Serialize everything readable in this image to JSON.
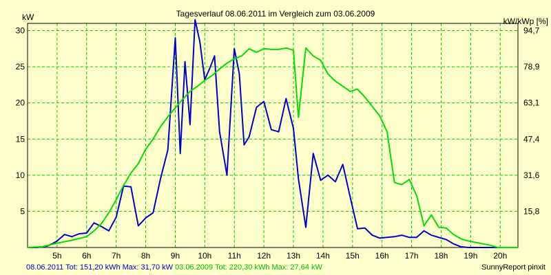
{
  "chart_data": {
    "type": "line",
    "title": "Tagesverlauf 08.06.2011 im Vergleich zum 03.06.2009",
    "ylabel_left": "kW",
    "ylabel_right": "kW/kWp [%]",
    "xlim": [
      4.0,
      20.6
    ],
    "ylim": [
      0,
      31
    ],
    "grid": true,
    "x_ticks": [
      {
        "x": 5,
        "label": "5h"
      },
      {
        "x": 6,
        "label": "6h"
      },
      {
        "x": 7,
        "label": "7h"
      },
      {
        "x": 8,
        "label": "8h"
      },
      {
        "x": 9,
        "label": "9h"
      },
      {
        "x": 10,
        "label": "10h"
      },
      {
        "x": 11,
        "label": "11h"
      },
      {
        "x": 12,
        "label": "12h"
      },
      {
        "x": 13,
        "label": "13h"
      },
      {
        "x": 14,
        "label": "14h"
      },
      {
        "x": 15,
        "label": "15h"
      },
      {
        "x": 16,
        "label": "16h"
      },
      {
        "x": 17,
        "label": "17h"
      },
      {
        "x": 18,
        "label": "18h"
      },
      {
        "x": 19,
        "label": "19h"
      },
      {
        "x": 20,
        "label": "20h"
      }
    ],
    "y_ticks_left": [
      {
        "y": 5,
        "label": "5"
      },
      {
        "y": 10,
        "label": "10"
      },
      {
        "y": 15,
        "label": "15"
      },
      {
        "y": 20,
        "label": "20"
      },
      {
        "y": 25,
        "label": "25"
      },
      {
        "y": 30,
        "label": "30"
      }
    ],
    "y_ticks_right": [
      {
        "y": 5,
        "label": "15,8"
      },
      {
        "y": 10,
        "label": "31,6"
      },
      {
        "y": 15,
        "label": "47,4"
      },
      {
        "y": 20,
        "label": "63,1"
      },
      {
        "y": 25,
        "label": "78,9"
      },
      {
        "y": 30,
        "label": "94,7"
      }
    ],
    "series": [
      {
        "name": "08.06.2011",
        "color": "#0000cc",
        "x": [
          4.0,
          4.33,
          4.67,
          4.83,
          5.0,
          5.25,
          5.5,
          5.75,
          6.0,
          6.25,
          6.5,
          6.75,
          7.0,
          7.25,
          7.5,
          7.75,
          8.0,
          8.25,
          8.5,
          8.75,
          9.0,
          9.17,
          9.33,
          9.5,
          9.67,
          9.83,
          10.0,
          10.17,
          10.33,
          10.5,
          10.75,
          11.0,
          11.17,
          11.33,
          11.5,
          11.75,
          12.0,
          12.25,
          12.5,
          12.75,
          13.0,
          13.17,
          13.42,
          13.67,
          13.92,
          14.17,
          14.42,
          14.67,
          14.92,
          15.17,
          15.42,
          15.67,
          15.92,
          16.17,
          16.42,
          16.67,
          16.92,
          17.17,
          17.42,
          17.67,
          17.92,
          18.17,
          18.42,
          18.67,
          18.92,
          19.17,
          19.42,
          19.67,
          19.92,
          20.17,
          20.6
        ],
        "values": [
          0,
          0,
          0.2,
          0.5,
          0.9,
          1.8,
          1.5,
          1.9,
          2.0,
          3.4,
          2.9,
          2.3,
          4.2,
          8.5,
          8.4,
          3.0,
          4.1,
          4.8,
          9.5,
          13.5,
          29.0,
          13.0,
          25.7,
          17.0,
          31.5,
          28.5,
          23.2,
          24.8,
          26.5,
          16.0,
          10.0,
          27.5,
          24.0,
          14.2,
          15.3,
          19.4,
          20.2,
          16.3,
          16.0,
          20.6,
          16.5,
          9.5,
          2.8,
          13.0,
          9.3,
          10.0,
          9.1,
          11.5,
          7.0,
          2.6,
          2.7,
          1.7,
          1.3,
          1.4,
          1.5,
          1.7,
          1.4,
          1.4,
          2.3,
          1.7,
          1.4,
          1.1,
          0.5,
          0.1,
          0,
          0,
          0,
          0,
          0,
          0,
          0
        ]
      },
      {
        "name": "03.06.2009",
        "color": "#00dd00",
        "x": [
          4.0,
          4.5,
          5.0,
          5.5,
          6.0,
          6.25,
          6.5,
          6.75,
          7.0,
          7.25,
          7.5,
          7.75,
          8.0,
          8.25,
          8.5,
          8.75,
          9.0,
          9.25,
          9.5,
          9.75,
          10.0,
          10.25,
          10.5,
          10.75,
          11.0,
          11.25,
          11.5,
          11.75,
          12.0,
          12.25,
          12.5,
          12.75,
          13.0,
          13.17,
          13.42,
          13.67,
          13.92,
          14.17,
          14.42,
          14.67,
          14.92,
          15.17,
          15.42,
          15.67,
          15.92,
          16.17,
          16.42,
          16.67,
          16.92,
          17.17,
          17.42,
          17.67,
          17.92,
          18.17,
          18.42,
          18.67,
          18.92,
          19.17,
          19.42,
          19.67,
          19.92,
          20.17,
          20.6
        ],
        "values": [
          0,
          0.1,
          0.6,
          1.0,
          1.5,
          2.3,
          3.3,
          4.8,
          6.6,
          8.6,
          10.3,
          11.6,
          13.6,
          15.0,
          16.7,
          18.1,
          19.3,
          20.5,
          21.6,
          22.3,
          23.1,
          23.8,
          24.7,
          25.5,
          26.1,
          26.5,
          27.5,
          27.0,
          27.5,
          27.4,
          27.4,
          27.6,
          27.3,
          18.0,
          27.6,
          26.5,
          25.9,
          24.0,
          23.0,
          22.3,
          21.6,
          21.9,
          20.8,
          19.5,
          18.2,
          16.0,
          9.0,
          8.7,
          9.4,
          7.2,
          3.0,
          4.5,
          2.8,
          2.7,
          1.8,
          1.2,
          0.9,
          0.7,
          0.5,
          0.3,
          0,
          0,
          0
        ]
      }
    ]
  },
  "footer": {
    "left_blue": "08.06.2011 Tot: 151,20 kWh Max: 31,70 kW",
    "left_green": "03.06.2009 Tot: 220,30 kWh Max: 27,64 kW",
    "right": "SunnyReport pinxit"
  }
}
